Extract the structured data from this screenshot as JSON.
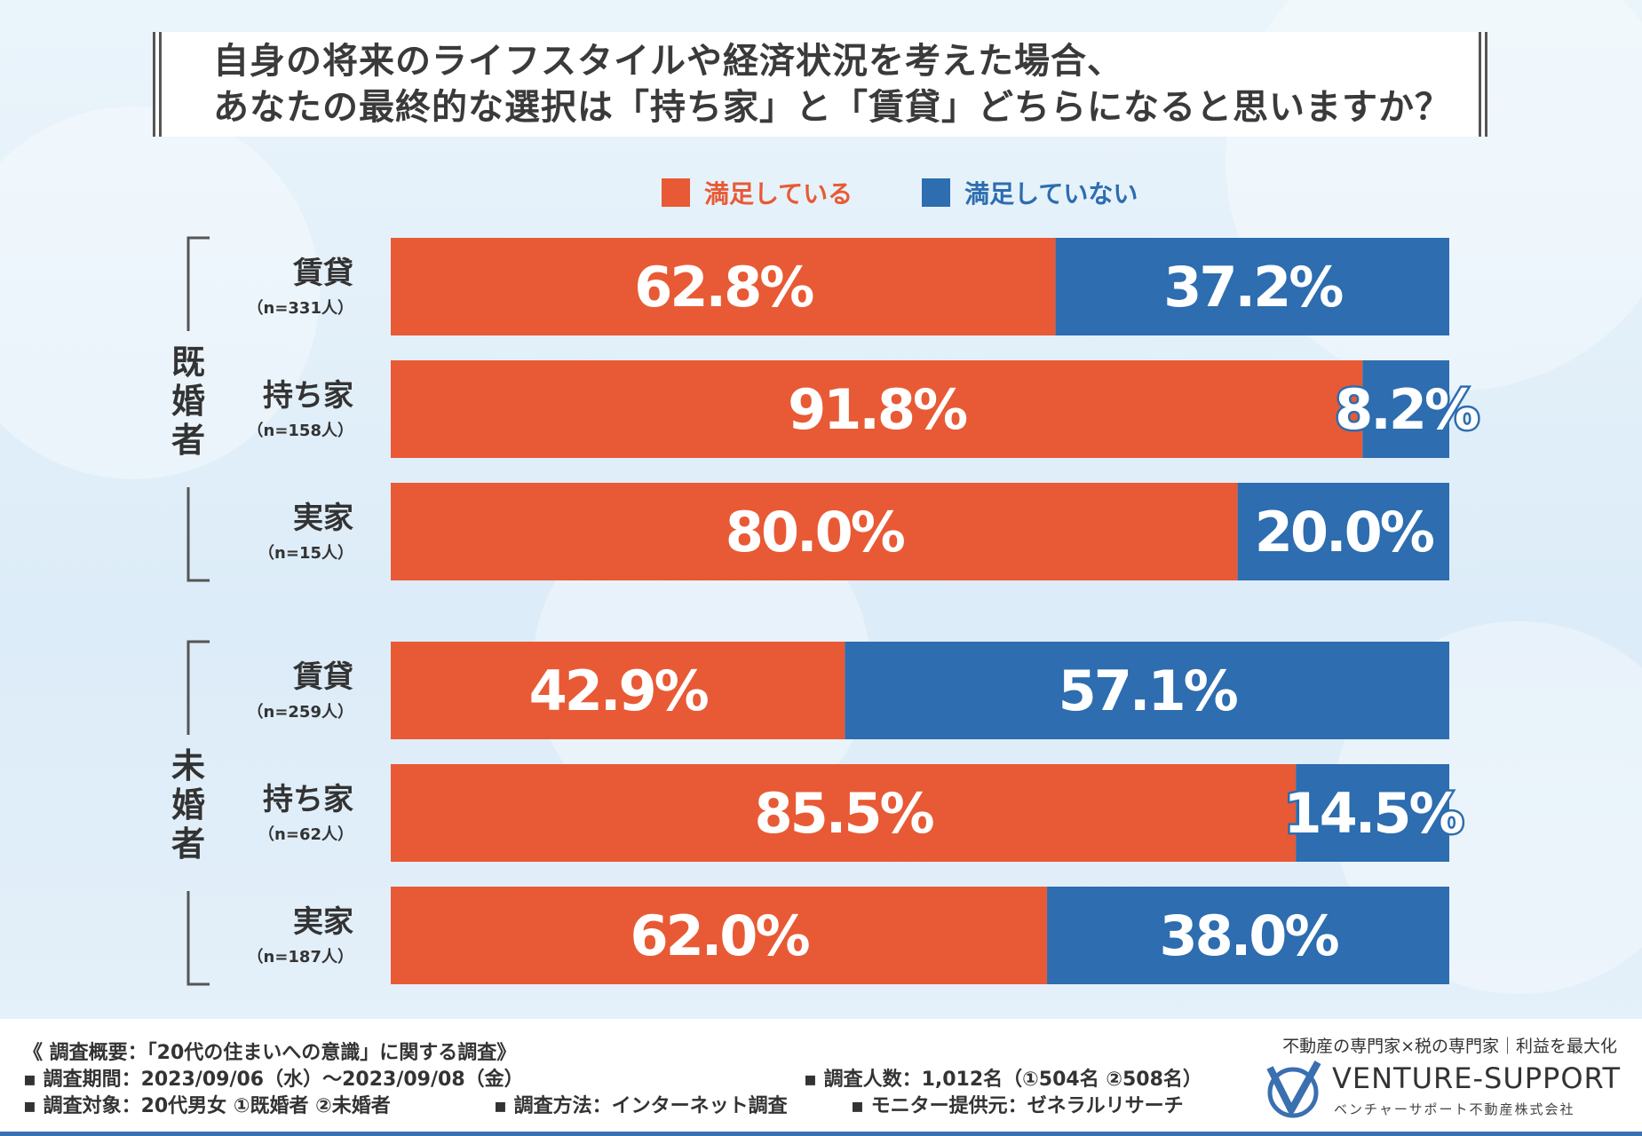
{
  "title": {
    "line1": "自身の将来のライフスタイルや経済状況を考えた場合、",
    "line2": "あなたの最終的な選択は「持ち家」と「賃貸」どちらになると思いますか？"
  },
  "colors": {
    "satisfied": "#e85a35",
    "not_satisfied": "#2d6db0"
  },
  "chart_data": {
    "type": "bar",
    "orientation": "horizontal",
    "stacked": true,
    "unit": "%",
    "xlim": [
      0,
      100
    ],
    "legend": [
      "満足している",
      "満足していない"
    ],
    "series": [
      {
        "name": "満足している",
        "values": [
          62.8,
          91.8,
          80.0,
          42.9,
          85.5,
          62.0
        ]
      },
      {
        "name": "満足していない",
        "values": [
          37.2,
          8.2,
          20.0,
          57.1,
          14.5,
          38.0
        ]
      }
    ],
    "groups": [
      {
        "label": "既婚者",
        "rows": [
          {
            "label": "賃貸",
            "n": "（n=331人）",
            "satisfied": 62.8,
            "not_satisfied": 37.2
          },
          {
            "label": "持ち家",
            "n": "（n=158人）",
            "satisfied": 91.8,
            "not_satisfied": 8.2
          },
          {
            "label": "実家",
            "n": "（n=15人）",
            "satisfied": 80.0,
            "not_satisfied": 20.0
          }
        ]
      },
      {
        "label": "未婚者",
        "rows": [
          {
            "label": "賃貸",
            "n": "（n=259人）",
            "satisfied": 42.9,
            "not_satisfied": 57.1
          },
          {
            "label": "持ち家",
            "n": "（n=62人）",
            "satisfied": 85.5,
            "not_satisfied": 14.5
          },
          {
            "label": "実家",
            "n": "（n=187人）",
            "satisfied": 62.0,
            "not_satisfied": 38.0
          }
        ]
      }
    ]
  },
  "footer": {
    "summary": "《 調査概要：「20代の住まいへの意識」に関する調査》",
    "period": "▪ 調査期間：2023/09/06（水）～2023/09/08（金）",
    "count": "▪ 調査人数：1,012名（①504名 ②508名）",
    "target": "▪ 調査対象：20代男女 ①既婚者 ②未婚者",
    "method": "▪ 調査方法：インターネット調査",
    "monitor": "▪ モニター提供元：ゼネラルリサーチ"
  },
  "brand": {
    "tagline": "不動産の専門家×税の専門家｜利益を最大化",
    "name": "VENTURE-SUPPORT",
    "sub": "ベンチャーサポート不動産株式会社"
  }
}
